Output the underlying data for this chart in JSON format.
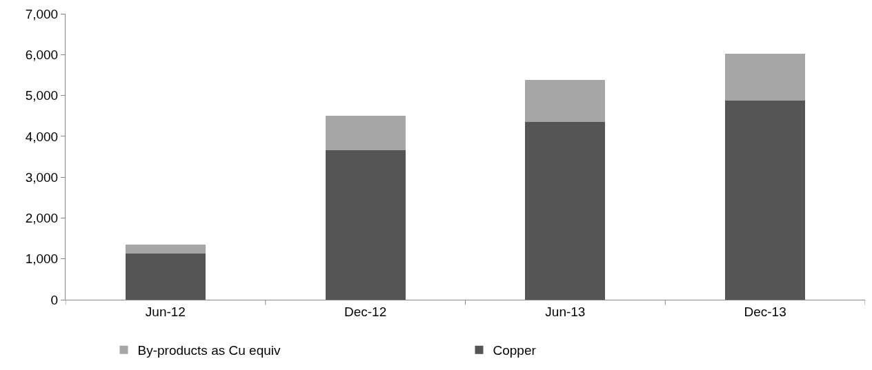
{
  "chart_data": {
    "type": "bar",
    "stacked": true,
    "categories": [
      "Jun-12",
      "Dec-12",
      "Jun-13",
      "Dec-13"
    ],
    "series": [
      {
        "name": "Copper",
        "color": "#555555",
        "values": [
          1130,
          3660,
          4360,
          4870
        ]
      },
      {
        "name": "By-products as Cu equiv",
        "color": "#a6a6a6",
        "values": [
          220,
          850,
          1020,
          1150
        ]
      }
    ],
    "ylim": [
      0,
      7000
    ],
    "yticks": [
      {
        "value": 0,
        "label": "0"
      },
      {
        "value": 1000,
        "label": "1,000"
      },
      {
        "value": 2000,
        "label": "2,000"
      },
      {
        "value": 3000,
        "label": "3,000"
      },
      {
        "value": 4000,
        "label": "4,000"
      },
      {
        "value": 5000,
        "label": "5,000"
      },
      {
        "value": 6000,
        "label": "6,000"
      },
      {
        "value": 7000,
        "label": "7,000"
      }
    ],
    "grid": false,
    "legend": "bottom"
  }
}
